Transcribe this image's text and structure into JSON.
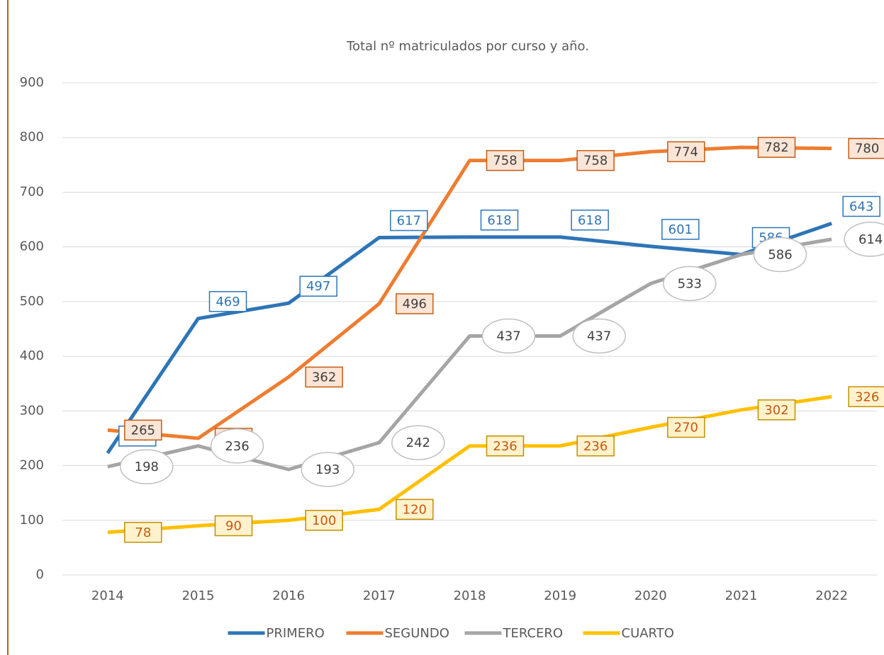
{
  "chart_data": {
    "type": "line",
    "title": "Total nº matriculados por curso y año.",
    "categories": [
      "2014",
      "2015",
      "2016",
      "2017",
      "2018",
      "2019",
      "2020",
      "2021",
      "2022"
    ],
    "series": [
      {
        "name": "PRIMERO",
        "color": "#2e75b6",
        "values": [
          223,
          469,
          497,
          617,
          618,
          618,
          601,
          586,
          643
        ]
      },
      {
        "name": "SEGUNDO",
        "color": "#ed7d31",
        "values": [
          265,
          250,
          362,
          496,
          758,
          758,
          774,
          782,
          780
        ]
      },
      {
        "name": "TERCERO",
        "color": "#a5a5a5",
        "values": [
          198,
          236,
          193,
          242,
          437,
          437,
          533,
          586,
          614
        ]
      },
      {
        "name": "CUARTO",
        "color": "#ffc000",
        "values": [
          78,
          90,
          100,
          120,
          236,
          236,
          270,
          302,
          326
        ]
      }
    ],
    "ylim": [
      0,
      900
    ],
    "yticks": [
      0,
      100,
      200,
      300,
      400,
      500,
      600,
      700,
      800,
      900
    ],
    "grid": true,
    "legend": "bottom"
  }
}
